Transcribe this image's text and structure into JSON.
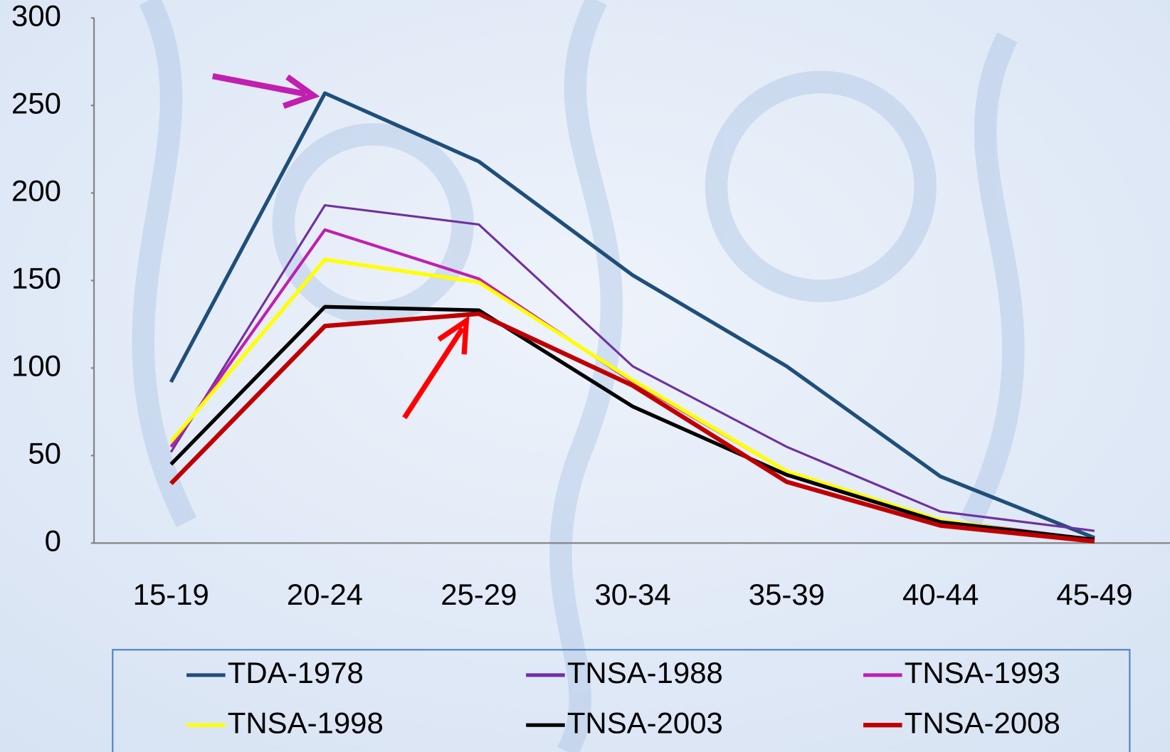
{
  "chart_data": {
    "type": "line",
    "categories": [
      "15-19",
      "20-24",
      "25-29",
      "30-34",
      "35-39",
      "40-44",
      "45-49"
    ],
    "series": [
      {
        "name": "TDA-1978",
        "color": "#1f4e79",
        "values": [
          92,
          257,
          218,
          153,
          101,
          38,
          3
        ]
      },
      {
        "name": "TNSA-1988",
        "color": "#7030a0",
        "values": [
          52,
          193,
          182,
          101,
          55,
          18,
          7
        ]
      },
      {
        "name": "TNSA-1993",
        "color": "#c01fb0",
        "values": [
          55,
          179,
          151,
          92,
          41,
          13,
          2
        ]
      },
      {
        "name": "TNSA-1998",
        "color": "#ffff00",
        "values": [
          58,
          162,
          149,
          93,
          41,
          13,
          1
        ]
      },
      {
        "name": "TNSA-2003",
        "color": "#000000",
        "values": [
          45,
          135,
          133,
          78,
          39,
          12,
          2
        ]
      },
      {
        "name": "TNSA-2008",
        "color": "#c00000",
        "values": [
          34,
          124,
          131,
          90,
          35,
          10,
          1
        ]
      }
    ],
    "ylim": [
      0,
      300
    ],
    "yticks": [
      0,
      50,
      100,
      150,
      200,
      250,
      300
    ],
    "grid": false
  }
}
